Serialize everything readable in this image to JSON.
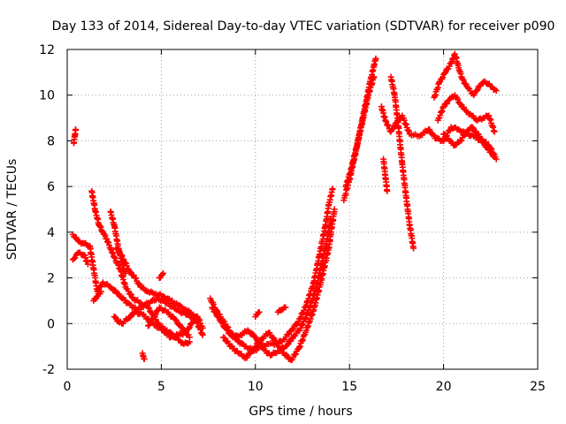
{
  "chart_data": {
    "type": "scatter",
    "title": "Day 133 of 2014, Sidereal Day-to-day VTEC variation (SDTVAR) for receiver p090",
    "xlabel": "GPS time / hours",
    "ylabel": "SDTVAR / TECUs",
    "xlim": [
      0,
      25
    ],
    "ylim": [
      -2,
      12
    ],
    "xticks": [
      0,
      5,
      10,
      15,
      20,
      25
    ],
    "yticks": [
      -2,
      0,
      2,
      4,
      6,
      8,
      10,
      12
    ],
    "xtick_labels": [
      "0",
      "5",
      "10",
      "15",
      "20",
      "25"
    ],
    "ytick_labels": [
      "-2",
      "0",
      "2",
      "4",
      "6",
      "8",
      "10",
      "12"
    ],
    "grid": true,
    "marker": "+",
    "color": "#ff0000",
    "series": [
      {
        "name": "s1",
        "x": [
          0.35,
          0.4,
          0.45
        ],
        "y": [
          7.9,
          8.2,
          8.5
        ]
      },
      {
        "name": "s2",
        "x": [
          0.3,
          0.6,
          0.9,
          1.2,
          1.6,
          1.9,
          2.3,
          2.7,
          3.2,
          3.7,
          4.3,
          4.8,
          5.3,
          5.8,
          6.3,
          6.8,
          7.2
        ],
        "y": [
          3.9,
          3.6,
          3.5,
          3.4,
          1.4,
          1.8,
          1.6,
          1.3,
          0.9,
          0.6,
          0.9,
          1.1,
          0.9,
          0.6,
          0.4,
          0.2,
          -0.5
        ]
      },
      {
        "name": "s3",
        "x": [
          0.3,
          0.6,
          0.9,
          1.1
        ],
        "y": [
          2.8,
          3.1,
          3.0,
          2.6
        ]
      },
      {
        "name": "s4",
        "x": [
          1.3,
          1.5,
          1.7,
          1.9,
          2.1,
          2.3,
          2.5,
          2.8,
          3.1,
          3.5,
          3.9,
          4.3,
          4.6,
          4.9,
          5.3,
          5.6,
          5.9,
          6.2,
          6.5
        ],
        "y": [
          5.8,
          4.9,
          4.3,
          4.0,
          3.7,
          3.3,
          2.9,
          2.4,
          1.6,
          1.1,
          0.9,
          0.7,
          0.3,
          -0.1,
          -0.3,
          -0.5,
          -0.7,
          -0.9,
          -0.8
        ]
      },
      {
        "name": "s5",
        "x": [
          1.4,
          1.6,
          1.8
        ],
        "y": [
          1.0,
          1.2,
          1.4
        ]
      },
      {
        "name": "s6",
        "x": [
          2.3,
          2.5,
          2.7,
          2.9,
          3.1
        ],
        "y": [
          4.9,
          4.3,
          3.4,
          2.7,
          2.2
        ]
      },
      {
        "name": "s7",
        "x": [
          2.5,
          2.7,
          2.9,
          3.2,
          3.6,
          4.0,
          4.4,
          4.7,
          5.1,
          5.5,
          5.9,
          6.3,
          6.6,
          6.9,
          7.2
        ],
        "y": [
          0.3,
          0.1,
          0.0,
          0.2,
          0.5,
          0.4,
          0.1,
          -0.1,
          -0.3,
          -0.6,
          -0.5,
          -0.4,
          0.0,
          0.3,
          -0.2
        ]
      },
      {
        "name": "s8",
        "x": [
          2.6,
          2.8,
          3.0,
          3.3,
          3.6,
          3.9,
          4.3,
          4.7,
          5.1,
          5.5,
          5.9,
          6.3,
          6.7,
          7.0
        ],
        "y": [
          3.3,
          3.1,
          2.8,
          2.3,
          2.0,
          1.6,
          1.4,
          1.3,
          1.2,
          1.0,
          0.8,
          0.6,
          0.4,
          0.2
        ]
      },
      {
        "name": "s9",
        "x": [
          4.0,
          4.05,
          4.1
        ],
        "y": [
          -1.3,
          -1.45,
          -1.55
        ]
      },
      {
        "name": "s10",
        "x": [
          4.3,
          4.6,
          4.9,
          5.3,
          5.7,
          6.1,
          6.5
        ],
        "y": [
          -0.1,
          0.3,
          0.7,
          0.5,
          0.2,
          -0.2,
          -0.6
        ]
      },
      {
        "name": "s11",
        "x": [
          4.9,
          5.0,
          5.1
        ],
        "y": [
          2.0,
          2.1,
          2.2
        ]
      },
      {
        "name": "s12",
        "x": [
          7.6,
          7.9,
          8.3,
          8.7,
          9.1,
          9.5,
          9.9,
          10.3,
          10.7,
          11.1,
          11.5,
          11.9,
          12.3,
          12.7,
          13.1,
          13.4,
          13.7,
          13.9,
          14.1
        ],
        "y": [
          1.1,
          0.6,
          0.1,
          -0.4,
          -0.8,
          -1.0,
          -1.2,
          -1.0,
          -0.9,
          -0.9,
          -0.7,
          -0.3,
          0.1,
          0.8,
          1.8,
          3.0,
          4.2,
          5.2,
          5.9
        ]
      },
      {
        "name": "s13",
        "x": [
          7.7,
          8.0,
          8.4,
          8.8,
          9.2,
          9.6,
          10.0,
          10.4,
          10.8,
          11.2,
          11.6,
          12.0,
          12.4,
          12.8,
          13.2,
          13.5,
          13.8,
          14.0
        ],
        "y": [
          0.7,
          0.3,
          -0.2,
          -0.6,
          -0.5,
          -0.3,
          -0.6,
          -1.1,
          -1.4,
          -1.2,
          -1.0,
          -0.6,
          -0.2,
          0.5,
          1.5,
          2.6,
          3.6,
          4.6
        ]
      },
      {
        "name": "s14",
        "x": [
          8.3,
          8.7,
          9.1,
          9.5,
          9.9,
          10.3,
          10.7,
          11.1,
          11.5,
          11.9,
          12.3,
          12.7,
          13.1,
          13.5,
          13.9,
          14.2
        ],
        "y": [
          -0.6,
          -1.0,
          -1.3,
          -1.5,
          -1.1,
          -0.7,
          -0.4,
          -0.8,
          -1.3,
          -1.6,
          -1.1,
          -0.3,
          0.6,
          1.9,
          3.3,
          5.0
        ]
      },
      {
        "name": "s15",
        "x": [
          10.0,
          10.1,
          10.2
        ],
        "y": [
          0.3,
          0.4,
          0.5
        ]
      },
      {
        "name": "s16",
        "x": [
          11.2,
          11.4,
          11.6
        ],
        "y": [
          0.5,
          0.6,
          0.7
        ]
      },
      {
        "name": "s17",
        "x": [
          14.7,
          15.0,
          15.3,
          15.6,
          15.9,
          16.1,
          16.3,
          16.4
        ],
        "y": [
          5.4,
          6.3,
          7.4,
          8.6,
          9.8,
          10.6,
          11.3,
          11.6
        ]
      },
      {
        "name": "s18",
        "x": [
          14.8,
          15.1,
          15.4,
          15.7,
          16.0,
          16.3
        ],
        "y": [
          6.0,
          6.8,
          7.8,
          8.9,
          10.0,
          10.8
        ]
      },
      {
        "name": "s19",
        "x": [
          16.8,
          16.9,
          17.0
        ],
        "y": [
          7.2,
          6.5,
          5.8
        ]
      },
      {
        "name": "s20",
        "x": [
          17.2,
          17.4,
          17.6,
          17.8,
          18.0,
          18.2,
          18.4
        ],
        "y": [
          10.8,
          10.0,
          8.6,
          7.0,
          5.6,
          4.3,
          3.3
        ]
      },
      {
        "name": "s21",
        "x": [
          16.7,
          16.9,
          17.2,
          17.5,
          17.8,
          18.2,
          18.7,
          19.2,
          19.6,
          20.0,
          20.4,
          20.8,
          21.2,
          21.6,
          22.0,
          22.4,
          22.8
        ],
        "y": [
          9.5,
          8.9,
          8.4,
          8.8,
          9.1,
          8.3,
          8.2,
          8.5,
          8.1,
          8.0,
          8.6,
          8.5,
          8.3,
          8.2,
          8.0,
          7.6,
          7.2
        ]
      },
      {
        "name": "s22",
        "x": [
          19.5,
          19.8,
          20.1,
          20.4,
          20.6,
          20.8,
          21.0,
          21.3,
          21.6,
          21.9,
          22.2,
          22.5,
          22.8
        ],
        "y": [
          9.9,
          10.6,
          11.0,
          11.4,
          11.8,
          11.2,
          10.7,
          10.3,
          10.0,
          10.4,
          10.6,
          10.4,
          10.2
        ]
      },
      {
        "name": "s23",
        "x": [
          19.7,
          20.0,
          20.3,
          20.6,
          20.9,
          21.2,
          21.5,
          21.8,
          22.1,
          22.4,
          22.7
        ],
        "y": [
          8.9,
          9.5,
          9.8,
          10.0,
          9.6,
          9.3,
          9.1,
          8.9,
          9.0,
          9.1,
          8.4
        ]
      },
      {
        "name": "s24",
        "x": [
          20.0,
          20.3,
          20.6,
          20.9,
          21.2,
          21.5,
          21.8,
          22.1,
          22.4,
          22.7
        ],
        "y": [
          8.3,
          8.0,
          7.8,
          8.0,
          8.4,
          8.6,
          8.3,
          8.0,
          7.8,
          7.4
        ]
      }
    ]
  }
}
